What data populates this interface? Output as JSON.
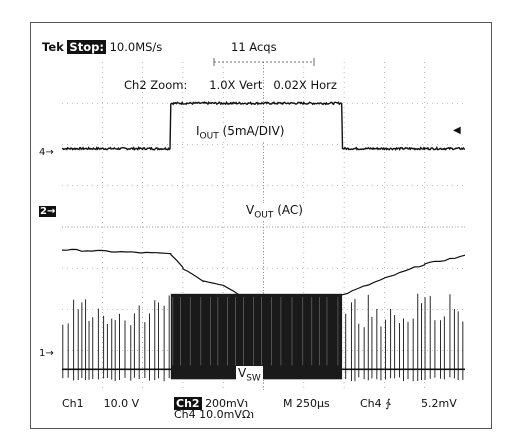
{
  "header": {
    "brand": "Tek",
    "state": "Stop:",
    "sample_rate": "10.0MS/s",
    "acqs": "11 Acqs",
    "zoom_info": "Ch2 Zoom:      1.0X Vert   0.02X Horz"
  },
  "labels": {
    "iout_main": "I",
    "iout_sub": "OUT",
    "iout_rest": " (5mA/DIV)",
    "vout_main": "V",
    "vout_sub": "OUT",
    "vout_rest": " (AC)",
    "vsw_main": "V",
    "vsw_sub": "SW"
  },
  "markers": {
    "ch4": "4→",
    "ch2": "2→",
    "ch1": "1→",
    "trigger": "◀"
  },
  "footer": {
    "ch1": "Ch1",
    "ch1_scale": "10.0 V",
    "ch2": "Ch2",
    "ch2_scale": "200mV℩",
    "timebase": "M  250μs",
    "trig": "Ch4 ∱",
    "trig_level": "5.2mV",
    "ch4": "Ch4",
    "ch4_scale": "10.0mVΩ℩"
  },
  "chart_data": {
    "type": "line",
    "grid": true,
    "x_divisions": 10,
    "y_divisions": 8,
    "series": [
      {
        "name": "IOUT (5mA/DIV)",
        "step_start_div": 2.7,
        "step_end_div": 6.95,
        "low_div": 1.0,
        "high_div": 2.1
      },
      {
        "name": "VOUT (AC)",
        "x_div": [
          0,
          2.7,
          3.0,
          3.5,
          4.0,
          4.5,
          5.0,
          6.0,
          6.95,
          8.0,
          9.0,
          10.0
        ],
        "y_div": [
          3.45,
          3.35,
          3.0,
          2.7,
          2.6,
          2.3,
          2.1,
          2.15,
          2.35,
          2.75,
          3.1,
          3.3
        ]
      },
      {
        "name": "VSW",
        "burst_start_div": 2.7,
        "burst_end_div": 6.95
      }
    ]
  }
}
